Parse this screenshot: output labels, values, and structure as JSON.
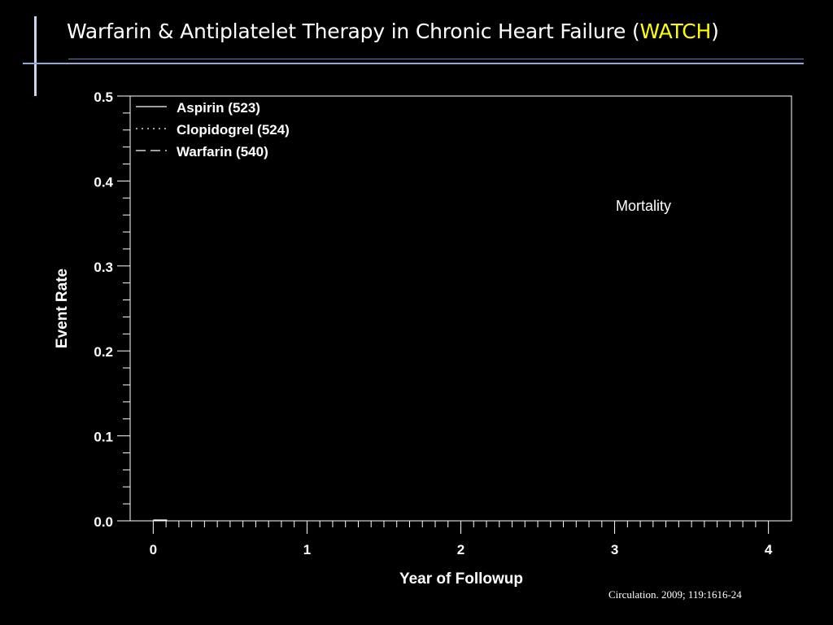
{
  "slide": {
    "title_prefix": "Warfarin & Antiplatelet Therapy in Chronic Heart Failure (",
    "title_highlight": "WATCH",
    "title_suffix": ")",
    "citation": "Circulation. 2009; 119:1616-24"
  },
  "colors": {
    "background": "#000000",
    "text": "#ffffff",
    "title_highlight": "#ffff00",
    "accent_bars": "#8ea8d8"
  },
  "chart_data": {
    "type": "line",
    "title": "",
    "annotation": "Mortality",
    "xlabel": "Year of Followup",
    "ylabel": "Event Rate",
    "xlim": [
      -0.15,
      4.15
    ],
    "ylim": [
      0,
      0.5
    ],
    "xticks": [
      0,
      1,
      2,
      3,
      4
    ],
    "yticks": [
      0.0,
      0.1,
      0.2,
      0.3,
      0.4,
      0.5
    ],
    "ytick_labels": [
      "0.0",
      "0.1",
      "0.2",
      "0.3",
      "0.4",
      "0.5"
    ],
    "legend_position": "top-left",
    "grid": false,
    "series": [
      {
        "name": "Aspirin (523)",
        "style": "solid",
        "x": [
          0,
          0.09
        ],
        "y": [
          0.001,
          0.001
        ]
      },
      {
        "name": "Clopidogrel (524)",
        "style": "dotted",
        "x": [],
        "y": []
      },
      {
        "name": "Warfarin (540)",
        "style": "dashed",
        "x": [],
        "y": []
      }
    ]
  }
}
